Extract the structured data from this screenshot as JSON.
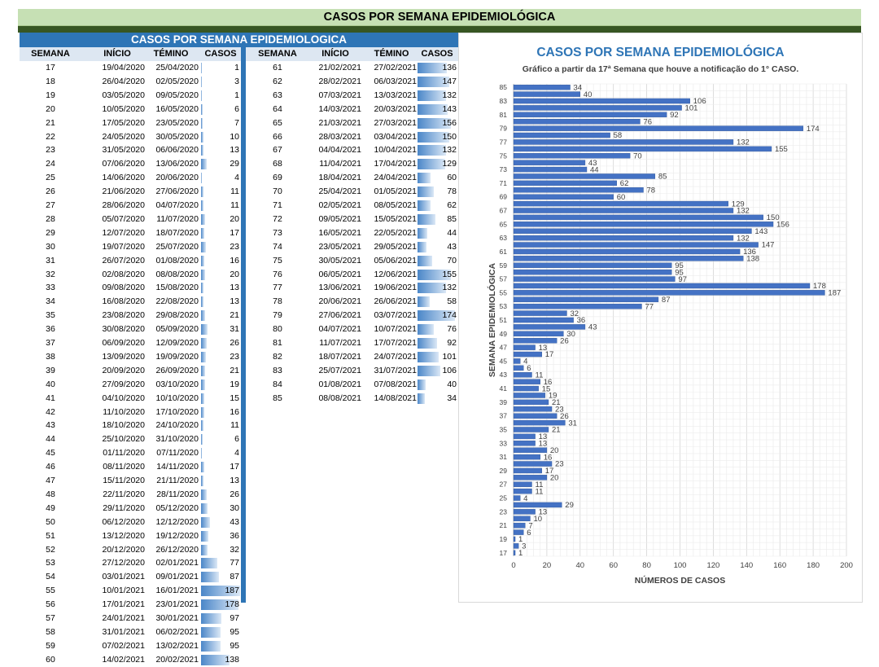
{
  "banner": {
    "title": "CASOS POR SEMANA EPIDEMIOLÓGICA"
  },
  "table": {
    "title": "CASOS POR SEMANA EPIDEMIOLOGICA",
    "headers": [
      "SEMANA",
      "INÍCIO",
      "TÉMINO",
      "CASOS"
    ],
    "rows_left": [
      [
        "17",
        "19/04/2020",
        "25/04/2020",
        1
      ],
      [
        "18",
        "26/04/2020",
        "02/05/2020",
        3
      ],
      [
        "19",
        "03/05/2020",
        "09/05/2020",
        1
      ],
      [
        "20",
        "10/05/2020",
        "16/05/2020",
        6
      ],
      [
        "21",
        "17/05/2020",
        "23/05/2020",
        7
      ],
      [
        "22",
        "24/05/2020",
        "30/05/2020",
        10
      ],
      [
        "23",
        "31/05/2020",
        "06/06/2020",
        13
      ],
      [
        "24",
        "07/06/2020",
        "13/06/2020",
        29
      ],
      [
        "25",
        "14/06/2020",
        "20/06/2020",
        4
      ],
      [
        "26",
        "21/06/2020",
        "27/06/2020",
        11
      ],
      [
        "27",
        "28/06/2020",
        "04/07/2020",
        11
      ],
      [
        "28",
        "05/07/2020",
        "11/07/2020",
        20
      ],
      [
        "29",
        "12/07/2020",
        "18/07/2020",
        17
      ],
      [
        "30",
        "19/07/2020",
        "25/07/2020",
        23
      ],
      [
        "31",
        "26/07/2020",
        "01/08/2020",
        16
      ],
      [
        "32",
        "02/08/2020",
        "08/08/2020",
        20
      ],
      [
        "33",
        "09/08/2020",
        "15/08/2020",
        13
      ],
      [
        "34",
        "16/08/2020",
        "22/08/2020",
        13
      ],
      [
        "35",
        "23/08/2020",
        "29/08/2020",
        21
      ],
      [
        "36",
        "30/08/2020",
        "05/09/2020",
        31
      ],
      [
        "37",
        "06/09/2020",
        "12/09/2020",
        26
      ],
      [
        "38",
        "13/09/2020",
        "19/09/2020",
        23
      ],
      [
        "39",
        "20/09/2020",
        "26/09/2020",
        21
      ],
      [
        "40",
        "27/09/2020",
        "03/10/2020",
        19
      ],
      [
        "41",
        "04/10/2020",
        "10/10/2020",
        15
      ],
      [
        "42",
        "11/10/2020",
        "17/10/2020",
        16
      ],
      [
        "43",
        "18/10/2020",
        "24/10/2020",
        11
      ],
      [
        "44",
        "25/10/2020",
        "31/10/2020",
        6
      ],
      [
        "45",
        "01/11/2020",
        "07/11/2020",
        4
      ],
      [
        "46",
        "08/11/2020",
        "14/11/2020",
        17
      ],
      [
        "47",
        "15/11/2020",
        "21/11/2020",
        13
      ],
      [
        "48",
        "22/11/2020",
        "28/11/2020",
        26
      ],
      [
        "49",
        "29/11/2020",
        "05/12/2020",
        30
      ],
      [
        "50",
        "06/12/2020",
        "12/12/2020",
        43
      ],
      [
        "51",
        "13/12/2020",
        "19/12/2020",
        36
      ],
      [
        "52",
        "20/12/2020",
        "26/12/2020",
        32
      ],
      [
        "53",
        "27/12/2020",
        "02/01/2021",
        77
      ],
      [
        "54",
        "03/01/2021",
        "09/01/2021",
        87
      ],
      [
        "55",
        "10/01/2021",
        "16/01/2021",
        187
      ],
      [
        "56",
        "17/01/2021",
        "23/01/2021",
        178
      ],
      [
        "57",
        "24/01/2021",
        "30/01/2021",
        97
      ],
      [
        "58",
        "31/01/2021",
        "06/02/2021",
        95
      ],
      [
        "59",
        "07/02/2021",
        "13/02/2021",
        95
      ],
      [
        "60",
        "14/02/2021",
        "20/02/2021",
        138
      ]
    ],
    "rows_right": [
      [
        "61",
        "21/02/2021",
        "27/02/2021",
        136
      ],
      [
        "62",
        "28/02/2021",
        "06/03/2021",
        147
      ],
      [
        "63",
        "07/03/2021",
        "13/03/2021",
        132
      ],
      [
        "64",
        "14/03/2021",
        "20/03/2021",
        143
      ],
      [
        "65",
        "21/03/2021",
        "27/03/2021",
        156
      ],
      [
        "66",
        "28/03/2021",
        "03/04/2021",
        150
      ],
      [
        "67",
        "04/04/2021",
        "10/04/2021",
        132
      ],
      [
        "68",
        "11/04/2021",
        "17/04/2021",
        129
      ],
      [
        "69",
        "18/04/2021",
        "24/04/2021",
        60
      ],
      [
        "70",
        "25/04/2021",
        "01/05/2021",
        78
      ],
      [
        "71",
        "02/05/2021",
        "08/05/2021",
        62
      ],
      [
        "72",
        "09/05/2021",
        "15/05/2021",
        85
      ],
      [
        "73",
        "16/05/2021",
        "22/05/2021",
        44
      ],
      [
        "74",
        "23/05/2021",
        "29/05/2021",
        43
      ],
      [
        "75",
        "30/05/2021",
        "05/06/2021",
        70
      ],
      [
        "76",
        "06/05/2021",
        "12/06/2021",
        155
      ],
      [
        "77",
        "13/06/2021",
        "19/06/2021",
        132
      ],
      [
        "78",
        "20/06/2021",
        "26/06/2021",
        58
      ],
      [
        "79",
        "27/06/2021",
        "03/07/2021",
        174
      ],
      [
        "80",
        "04/07/2021",
        "10/07/2021",
        76
      ],
      [
        "81",
        "11/07/2021",
        "17/07/2021",
        92
      ],
      [
        "82",
        "18/07/2021",
        "24/07/2021",
        101
      ],
      [
        "83",
        "25/07/2021",
        "31/07/2021",
        106
      ],
      [
        "84",
        "01/08/2021",
        "07/08/2021",
        40
      ],
      [
        "85",
        "08/08/2021",
        "14/08/2021",
        34
      ]
    ],
    "databar_max": 187
  },
  "chart_data": {
    "type": "bar",
    "orientation": "horizontal",
    "title": "CASOS POR SEMANA EPIDEMIOLÓGICA",
    "subtitle": "Gráfico a partir da 17ª Semana que houve a notificação do 1° CASO.",
    "xlabel": "NÚMEROS DE CASOS",
    "ylabel": "SEMANA EPIDEMIOLÓGICA",
    "xlim": [
      0,
      200
    ],
    "xticks": [
      0,
      20,
      40,
      60,
      80,
      100,
      120,
      140,
      160,
      180,
      200
    ],
    "ytick_labels": [
      17,
      19,
      21,
      23,
      25,
      27,
      29,
      31,
      33,
      35,
      37,
      39,
      41,
      43,
      45,
      47,
      49,
      51,
      53,
      55,
      57,
      59,
      61,
      63,
      65,
      67,
      69,
      71,
      73,
      75,
      77,
      79,
      81,
      83,
      85
    ],
    "grid": true,
    "data_labels": true,
    "color": "#4472c4",
    "categories": [
      17,
      18,
      19,
      20,
      21,
      22,
      23,
      24,
      25,
      26,
      27,
      28,
      29,
      30,
      31,
      32,
      33,
      34,
      35,
      36,
      37,
      38,
      39,
      40,
      41,
      42,
      43,
      44,
      45,
      46,
      47,
      48,
      49,
      50,
      51,
      52,
      53,
      54,
      55,
      56,
      57,
      58,
      59,
      60,
      61,
      62,
      63,
      64,
      65,
      66,
      67,
      68,
      69,
      70,
      71,
      72,
      73,
      74,
      75,
      76,
      77,
      78,
      79,
      80,
      81,
      82,
      83,
      84,
      85
    ],
    "values": [
      1,
      3,
      1,
      6,
      7,
      10,
      13,
      29,
      4,
      11,
      11,
      20,
      17,
      23,
      16,
      20,
      13,
      13,
      21,
      31,
      26,
      23,
      21,
      19,
      15,
      16,
      11,
      6,
      4,
      17,
      13,
      26,
      30,
      43,
      36,
      32,
      77,
      87,
      187,
      178,
      97,
      95,
      95,
      138,
      136,
      147,
      132,
      143,
      156,
      150,
      132,
      129,
      60,
      78,
      62,
      85,
      44,
      43,
      70,
      155,
      132,
      58,
      174,
      76,
      92,
      101,
      106,
      40,
      34
    ]
  }
}
